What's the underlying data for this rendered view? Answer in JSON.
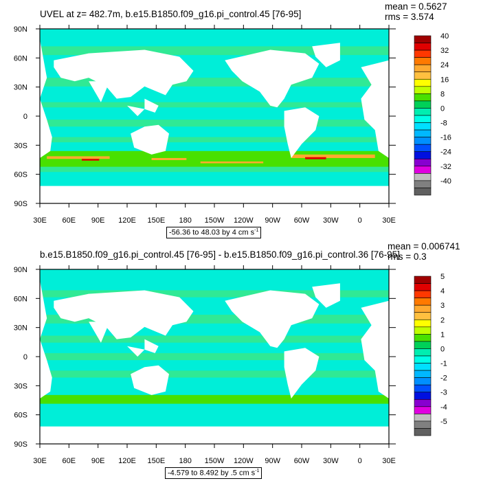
{
  "chart_data": [
    {
      "type": "heatmap",
      "title": "UVEL at z= 482.7m, b.e15.B1850.f09_g16.pi_control.45 [76-95]",
      "stats": {
        "mean_label": "mean = 0.5627",
        "rms_label": "rms = 3.574"
      },
      "range_label": "-56.36 to 48.03 by 4 cm s",
      "range_unit_exp": "-1",
      "x_ticks": [
        "30E",
        "60E",
        "90E",
        "120E",
        "150E",
        "180",
        "150W",
        "120W",
        "90W",
        "60W",
        "30W",
        "0",
        "30E"
      ],
      "y_ticks": [
        "90N",
        "60N",
        "30N",
        "0",
        "30S",
        "60S",
        "90S"
      ],
      "colorbar_labels": [
        "40",
        "32",
        "24",
        "16",
        "8",
        "0",
        "-8",
        "-16",
        "-24",
        "-32",
        "-40"
      ],
      "colorbar_colors": [
        "#a00000",
        "#e00000",
        "#ff3800",
        "#ff7a00",
        "#ffaa30",
        "#ffc040",
        "#ffff00",
        "#c0ff00",
        "#48e000",
        "#00d058",
        "#00eeb0",
        "#00ffe6",
        "#00e0ff",
        "#00b8ff",
        "#0090ff",
        "#0050ff",
        "#0010e0",
        "#8800d0",
        "#e000e0",
        "#c0c0c0",
        "#808080",
        "#606060"
      ]
    },
    {
      "type": "heatmap",
      "title": "b.e15.B1850.f09_g16.pi_control.45 [76-95] - b.e15.B1850.f09_g16.pi_control.36 [76-95]",
      "stats": {
        "mean_label": "mean = 0.006741",
        "rms_label": "rms = 0.3"
      },
      "range_label": "-4.579 to 8.492 by .5 cm s",
      "range_unit_exp": "-1",
      "x_ticks": [
        "30E",
        "60E",
        "90E",
        "120E",
        "150E",
        "180",
        "150W",
        "120W",
        "90W",
        "60W",
        "30W",
        "0",
        "30E"
      ],
      "y_ticks": [
        "90N",
        "60N",
        "30N",
        "0",
        "30S",
        "60S",
        "90S"
      ],
      "colorbar_labels": [
        "5",
        "4",
        "3",
        "2",
        "1",
        "0",
        "-1",
        "-2",
        "-3",
        "-4",
        "-5"
      ],
      "colorbar_colors": [
        "#a00000",
        "#e00000",
        "#ff3800",
        "#ff7a00",
        "#ffaa30",
        "#ffc040",
        "#ffff00",
        "#c0ff00",
        "#48e000",
        "#00d058",
        "#00eeb0",
        "#00ffe6",
        "#00e0ff",
        "#00b8ff",
        "#0090ff",
        "#0050ff",
        "#0010e0",
        "#8800d0",
        "#e000e0",
        "#c0c0c0",
        "#808080",
        "#606060"
      ]
    }
  ],
  "colors": {
    "ocean_base": "#00eed8",
    "ocean_band": "#38e88a",
    "land": "#ffffff"
  }
}
